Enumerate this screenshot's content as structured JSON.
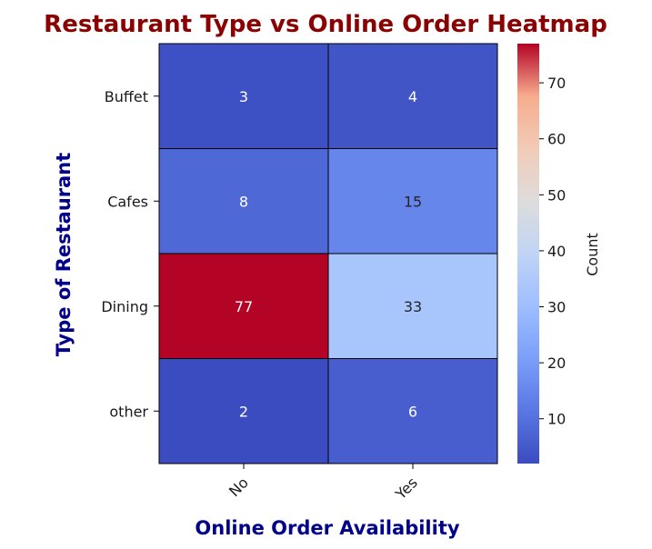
{
  "chart_data": {
    "type": "heatmap",
    "title": "Restaurant Type vs Online Order Heatmap",
    "xlabel": "Online Order Availability",
    "ylabel": "Type of Restaurant",
    "x_categories": [
      "No",
      "Yes"
    ],
    "y_categories": [
      "Buffet",
      "Cafes",
      "Dining",
      "other"
    ],
    "values": [
      [
        3,
        4
      ],
      [
        8,
        15
      ],
      [
        77,
        33
      ],
      [
        2,
        6
      ]
    ],
    "colormap": "coolwarm",
    "vmin": 2,
    "vmax": 77,
    "colorbar": {
      "label": "Count",
      "ticks": [
        10,
        20,
        30,
        40,
        50,
        60,
        70
      ]
    },
    "colors": {
      "title": "#8b0000",
      "axis_labels": "#00008b",
      "cell_border": "#000000"
    }
  }
}
